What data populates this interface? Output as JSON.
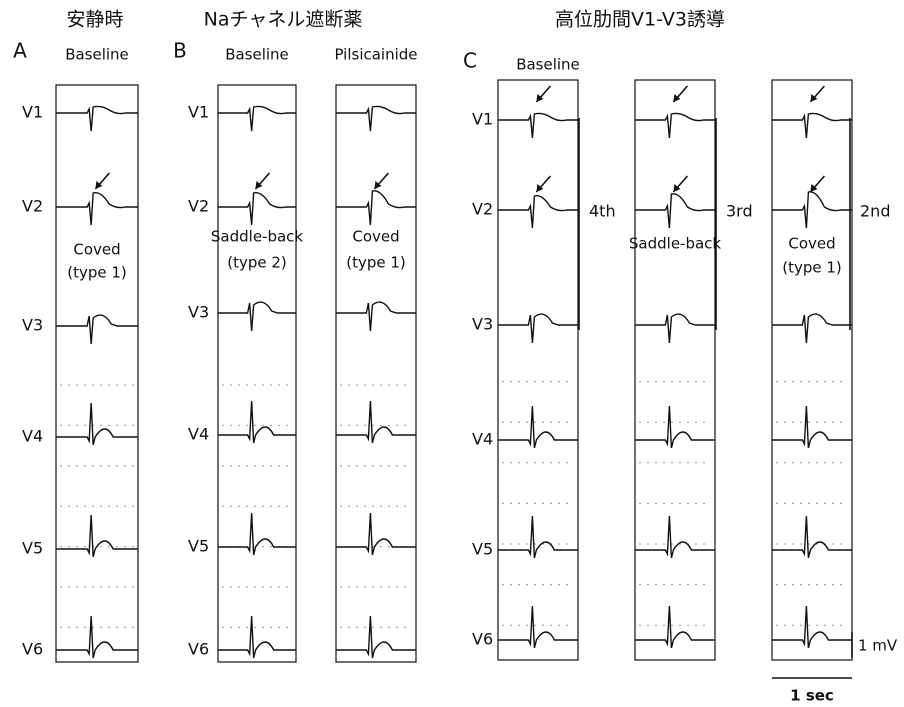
{
  "panels": [
    {
      "title": "安静時",
      "letter": "A",
      "leads": [
        "V1",
        "V2",
        "V3",
        "V4",
        "V5",
        "V6"
      ],
      "columns": [
        {
          "label": "Baseline",
          "annotation": [
            "Coved",
            "(type 1)"
          ]
        }
      ]
    },
    {
      "title": "Naチャネル遮断薬",
      "letter": "B",
      "leads": [
        "V1",
        "V2",
        "V3",
        "V4",
        "V5",
        "V6"
      ],
      "columns": [
        {
          "label": "Baseline",
          "annotation": [
            "Saddle-back",
            "(type 2)"
          ]
        },
        {
          "label": "Pilsicainide",
          "annotation": [
            "Coved",
            "(type 1)"
          ]
        }
      ]
    },
    {
      "title": "高位肋間V1-V3誘導",
      "letter": "C",
      "leads": [
        "V1",
        "V2",
        "V3",
        "V4",
        "V5",
        "V6"
      ],
      "columns": [
        {
          "label": "Baseline",
          "level": "4th"
        },
        {
          "annotation": [
            "Saddle-back"
          ],
          "level": "3rd"
        },
        {
          "annotation": [
            "Coved",
            "(type 1)"
          ],
          "level": "2nd"
        }
      ]
    }
  ],
  "scale": {
    "voltage": "1 mV",
    "time": "1 sec"
  }
}
